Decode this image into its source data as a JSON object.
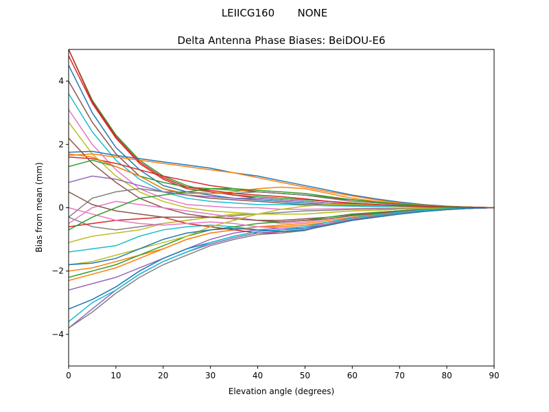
{
  "chart_data": {
    "type": "line",
    "suptitle": "LEIICG160       NONE",
    "title": "Delta Antenna Phase Biases: BeiDOU-E6",
    "xlabel": "Elevation angle (degrees)",
    "ylabel": "Bias from mean (mm)",
    "xlim": [
      0,
      90
    ],
    "ylim": [
      -5,
      5
    ],
    "xticks": [
      0,
      10,
      20,
      30,
      40,
      50,
      60,
      70,
      80,
      90
    ],
    "yticks": [
      -4,
      -2,
      0,
      2,
      4
    ],
    "grid": false,
    "colors": [
      "#1f77b4",
      "#ff7f0e",
      "#2ca02c",
      "#d62728",
      "#9467bd",
      "#8c564b",
      "#e377c2",
      "#7f7f7f",
      "#bcbd22",
      "#17becf"
    ],
    "x": [
      0,
      5,
      10,
      15,
      20,
      25,
      30,
      35,
      40,
      45,
      50,
      55,
      60,
      65,
      70,
      75,
      80,
      85,
      90
    ],
    "series": [
      {
        "values": [
          4.5,
          3.0,
          1.9,
          1.2,
          0.7,
          0.5,
          0.4,
          0.3,
          0.25,
          0.2,
          0.15,
          0.1,
          0.08,
          0.05,
          0.04,
          0.03,
          0.02,
          0.01,
          0
        ]
      },
      {
        "values": [
          -2.3,
          -2.1,
          -1.9,
          -1.6,
          -1.3,
          -1.0,
          -0.8,
          -0.7,
          -0.6,
          -0.6,
          -0.55,
          -0.45,
          -0.35,
          -0.25,
          -0.15,
          -0.08,
          -0.04,
          -0.02,
          0
        ]
      },
      {
        "values": [
          5.0,
          3.4,
          2.3,
          1.5,
          1.0,
          0.7,
          0.5,
          0.4,
          0.35,
          0.3,
          0.25,
          0.2,
          0.15,
          0.1,
          0.07,
          0.05,
          0.03,
          0.01,
          0
        ]
      },
      {
        "values": [
          4.8,
          3.3,
          2.2,
          1.4,
          0.9,
          0.6,
          0.5,
          0.4,
          0.3,
          0.25,
          0.2,
          0.15,
          0.1,
          0.08,
          0.05,
          0.03,
          0.02,
          0.01,
          0
        ]
      },
      {
        "values": [
          -2.6,
          -2.4,
          -2.2,
          -1.9,
          -1.6,
          -1.3,
          -1.0,
          -0.8,
          -0.7,
          -0.65,
          -0.6,
          -0.45,
          -0.35,
          -0.25,
          -0.15,
          -0.08,
          -0.04,
          -0.02,
          0
        ]
      },
      {
        "values": [
          4.0,
          2.7,
          1.7,
          1.0,
          0.6,
          0.4,
          0.3,
          0.25,
          0.2,
          0.15,
          0.1,
          0.08,
          0.06,
          0.05,
          0.04,
          0.03,
          0.02,
          0.01,
          0
        ]
      },
      {
        "values": [
          3.1,
          2.0,
          1.2,
          0.6,
          0.3,
          0.1,
          0.05,
          0.0,
          0.0,
          -0.05,
          -0.05,
          -0.04,
          -0.03,
          -0.02,
          -0.02,
          -0.01,
          -0.01,
          0,
          0
        ]
      },
      {
        "values": [
          -0.3,
          -0.6,
          -0.7,
          -0.6,
          -0.5,
          -0.4,
          -0.3,
          -0.25,
          -0.2,
          -0.15,
          -0.1,
          -0.08,
          -0.05,
          -0.04,
          -0.03,
          -0.02,
          -0.01,
          0,
          0
        ]
      },
      {
        "values": [
          2.7,
          1.7,
          1.0,
          0.5,
          0.2,
          0.0,
          -0.1,
          -0.15,
          -0.2,
          -0.2,
          -0.2,
          -0.15,
          -0.1,
          -0.08,
          -0.05,
          -0.03,
          -0.02,
          -0.01,
          0
        ]
      },
      {
        "values": [
          3.6,
          2.4,
          1.5,
          0.9,
          0.5,
          0.3,
          0.2,
          0.15,
          0.1,
          0.1,
          0.08,
          0.06,
          0.05,
          0.04,
          0.03,
          0.02,
          0.01,
          0.01,
          0
        ]
      },
      {
        "values": [
          1.75,
          1.78,
          1.65,
          1.55,
          1.45,
          1.35,
          1.25,
          1.1,
          1.0,
          0.85,
          0.7,
          0.55,
          0.4,
          0.28,
          0.18,
          0.1,
          0.05,
          0.02,
          0
        ]
      },
      {
        "values": [
          1.65,
          1.7,
          1.6,
          1.5,
          1.4,
          1.3,
          1.2,
          1.1,
          0.95,
          0.8,
          0.65,
          0.5,
          0.37,
          0.25,
          0.15,
          0.08,
          0.04,
          0.02,
          0
        ]
      },
      {
        "values": [
          1.3,
          1.5,
          1.3,
          1.0,
          0.8,
          0.65,
          0.6,
          0.55,
          0.5,
          0.45,
          0.4,
          0.33,
          0.25,
          0.18,
          0.12,
          0.07,
          0.04,
          0.02,
          0
        ]
      },
      {
        "values": [
          1.6,
          1.55,
          1.4,
          1.2,
          1.0,
          0.85,
          0.7,
          0.6,
          0.5,
          0.45,
          0.4,
          0.3,
          0.25,
          0.18,
          0.12,
          0.07,
          0.04,
          0.02,
          0
        ]
      },
      {
        "values": [
          0.8,
          1.0,
          0.9,
          0.7,
          0.5,
          0.4,
          0.35,
          0.3,
          0.3,
          0.25,
          0.2,
          0.15,
          0.12,
          0.1,
          0.07,
          0.05,
          0.03,
          0.01,
          0
        ]
      },
      {
        "values": [
          2.2,
          1.4,
          0.8,
          0.3,
          0.0,
          -0.2,
          -0.3,
          -0.35,
          -0.4,
          -0.4,
          -0.35,
          -0.3,
          -0.2,
          -0.15,
          -0.1,
          -0.05,
          -0.03,
          -0.01,
          0
        ]
      },
      {
        "values": [
          -0.5,
          0.0,
          0.2,
          0.1,
          0.0,
          -0.1,
          -0.2,
          -0.3,
          -0.4,
          -0.5,
          -0.45,
          -0.35,
          -0.25,
          -0.18,
          -0.12,
          -0.07,
          -0.04,
          -0.02,
          0
        ]
      },
      {
        "values": [
          -0.3,
          0.3,
          0.5,
          0.6,
          0.5,
          0.5,
          0.45,
          0.45,
          0.5,
          0.45,
          0.4,
          0.3,
          0.2,
          0.15,
          0.1,
          0.06,
          0.03,
          0.01,
          0
        ]
      },
      {
        "values": [
          -1.1,
          -0.9,
          -0.8,
          -0.7,
          -0.5,
          -0.4,
          -0.3,
          -0.2,
          -0.2,
          -0.2,
          -0.2,
          -0.15,
          -0.1,
          -0.08,
          -0.05,
          -0.03,
          -0.02,
          -0.01,
          0
        ]
      },
      {
        "values": [
          -1.4,
          -1.3,
          -1.2,
          -0.9,
          -0.7,
          -0.6,
          -0.55,
          -0.6,
          -0.7,
          -0.75,
          -0.7,
          -0.55,
          -0.4,
          -0.3,
          -0.2,
          -0.12,
          -0.06,
          -0.02,
          0
        ]
      },
      {
        "values": [
          -3.2,
          -2.9,
          -2.5,
          -2.0,
          -1.6,
          -1.3,
          -1.1,
          -0.9,
          -0.75,
          -0.7,
          -0.65,
          -0.5,
          -0.35,
          -0.25,
          -0.15,
          -0.08,
          -0.04,
          -0.02,
          0
        ]
      },
      {
        "values": [
          -2.0,
          -1.9,
          -1.7,
          -1.5,
          -1.3,
          -1.0,
          -0.8,
          -0.7,
          -0.6,
          -0.55,
          -0.5,
          -0.4,
          -0.3,
          -0.2,
          -0.13,
          -0.08,
          -0.04,
          -0.02,
          0
        ]
      },
      {
        "values": [
          -2.2,
          -2.0,
          -1.8,
          -1.5,
          -1.2,
          -0.9,
          -0.7,
          -0.6,
          -0.5,
          -0.45,
          -0.4,
          -0.3,
          -0.22,
          -0.15,
          -0.1,
          -0.06,
          -0.03,
          -0.01,
          0
        ]
      },
      {
        "values": [
          -0.6,
          -0.5,
          -0.4,
          -0.35,
          -0.3,
          -0.5,
          -0.6,
          -0.7,
          -0.8,
          -0.8,
          -0.7,
          -0.55,
          -0.4,
          -0.3,
          -0.2,
          -0.12,
          -0.06,
          -0.02,
          0
        ]
      },
      {
        "values": [
          -3.8,
          -3.2,
          -2.6,
          -2.1,
          -1.7,
          -1.4,
          -1.15,
          -0.95,
          -0.8,
          -0.75,
          -0.7,
          -0.5,
          -0.38,
          -0.26,
          -0.16,
          -0.09,
          -0.05,
          -0.02,
          0
        ]
      },
      {
        "values": [
          0.5,
          0.1,
          -0.1,
          -0.2,
          -0.3,
          -0.3,
          -0.3,
          -0.35,
          -0.4,
          -0.45,
          -0.4,
          -0.35,
          -0.25,
          -0.18,
          -0.12,
          -0.07,
          -0.04,
          -0.02,
          0
        ]
      },
      {
        "values": [
          0.0,
          -0.2,
          -0.4,
          -0.5,
          -0.55,
          -0.5,
          -0.45,
          -0.5,
          -0.6,
          -0.65,
          -0.6,
          -0.5,
          -0.35,
          -0.25,
          -0.15,
          -0.08,
          -0.04,
          -0.02,
          0
        ]
      },
      {
        "values": [
          -3.8,
          -3.3,
          -2.7,
          -2.2,
          -1.8,
          -1.5,
          -1.2,
          -1.0,
          -0.85,
          -0.8,
          -0.72,
          -0.52,
          -0.38,
          -0.26,
          -0.16,
          -0.09,
          -0.05,
          -0.02,
          0
        ]
      },
      {
        "values": [
          -1.8,
          -1.7,
          -1.5,
          -1.3,
          -1.1,
          -0.9,
          -0.6,
          -0.4,
          -0.2,
          -0.05,
          0.05,
          0.1,
          0.1,
          0.08,
          0.05,
          0.03,
          0.02,
          0.01,
          0
        ]
      },
      {
        "values": [
          -3.6,
          -3.0,
          -2.6,
          -2.1,
          -1.7,
          -1.4,
          -1.1,
          -0.9,
          -0.75,
          -0.7,
          -0.6,
          -0.45,
          -0.32,
          -0.22,
          -0.14,
          -0.08,
          -0.04,
          -0.02,
          0
        ]
      },
      {
        "values": [
          -1.8,
          -1.75,
          -1.6,
          -1.3,
          -1.0,
          -0.8,
          -0.7,
          -0.65,
          -0.7,
          -0.75,
          -0.7,
          -0.55,
          -0.4,
          -0.3,
          -0.2,
          -0.12,
          -0.06,
          -0.02,
          0
        ]
      },
      {
        "values": [
          1.7,
          1.6,
          1.3,
          1.0,
          0.6,
          0.45,
          0.45,
          0.5,
          0.6,
          0.65,
          0.6,
          0.45,
          0.3,
          0.2,
          0.13,
          0.08,
          0.04,
          0.02,
          0
        ]
      },
      {
        "values": [
          -0.7,
          -0.3,
          0.0,
          0.3,
          0.4,
          0.5,
          0.6,
          0.6,
          0.55,
          0.5,
          0.45,
          0.35,
          0.25,
          0.18,
          0.12,
          0.07,
          0.04,
          0.02,
          0
        ]
      },
      {
        "values": [
          5.0,
          3.35,
          2.25,
          1.45,
          0.95,
          0.65,
          0.55,
          0.45,
          0.4,
          0.35,
          0.28,
          0.2,
          0.14,
          0.1,
          0.06,
          0.04,
          0.02,
          0.01,
          0
        ]
      }
    ]
  }
}
